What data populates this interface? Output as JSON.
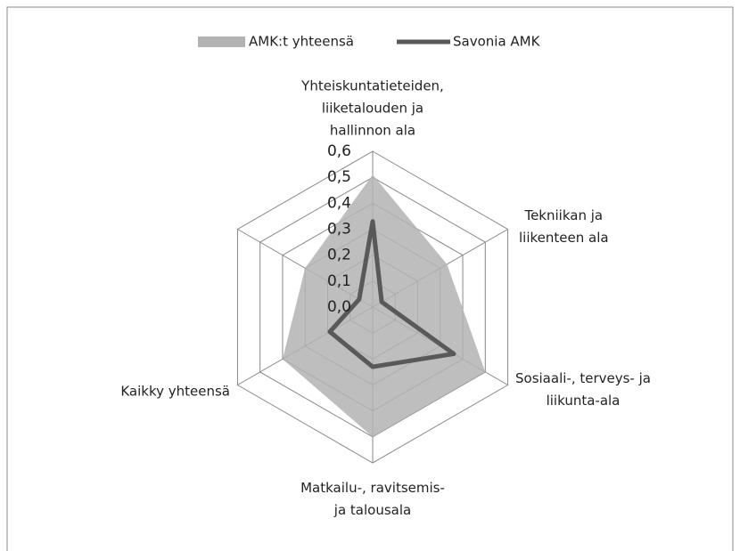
{
  "chart_data": {
    "type": "radar",
    "categories": [
      "Yhteiskuntatieteiden,\nliiketalouden ja\nhallinnon ala",
      "Tekniikan ja\nliikenteen ala",
      "Sosiaali-, terveys- ja\nliikunta-ala",
      "Matkailu-, ravitsemis-\nja talousala",
      "Kaikky yhteensä",
      null
    ],
    "series": [
      {
        "name": "AMK:t yhteensä",
        "color": "#b3b3b3",
        "values": [
          0.51,
          0.33,
          0.5,
          0.5,
          0.4,
          0.3
        ]
      },
      {
        "name": "Savonia AMK",
        "color": "#595959",
        "values": [
          0.33,
          0.04,
          0.36,
          0.23,
          0.19,
          0.06
        ]
      }
    ],
    "ylim": [
      0,
      0.6
    ],
    "yticks": [
      {
        "value": 0,
        "label": "0,0"
      },
      {
        "value": 0.1,
        "label": "0,1"
      },
      {
        "value": 0.2,
        "label": "0,2"
      },
      {
        "value": 0.3,
        "label": "0,3"
      },
      {
        "value": 0.4,
        "label": "0,4"
      },
      {
        "value": 0.5,
        "label": "0,5"
      },
      {
        "value": 0.6,
        "label": "0,6"
      }
    ],
    "grid": true,
    "legend": "top"
  }
}
